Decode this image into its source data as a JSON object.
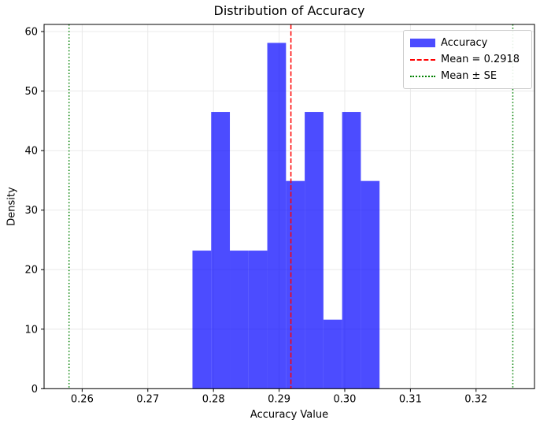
{
  "chart_data": {
    "type": "histogram",
    "title": "Distribution of Accuracy",
    "xlabel": "Accuracy Value",
    "ylabel": "Density",
    "xlim": [
      0.2542,
      0.3289
    ],
    "ylim": [
      0,
      61.2
    ],
    "xticks": [
      {
        "value": 0.26,
        "label": "0.26"
      },
      {
        "value": 0.27,
        "label": "0.27"
      },
      {
        "value": 0.28,
        "label": "0.28"
      },
      {
        "value": 0.29,
        "label": "0.29"
      },
      {
        "value": 0.3,
        "label": "0.30"
      },
      {
        "value": 0.31,
        "label": "0.31"
      },
      {
        "value": 0.32,
        "label": "0.32"
      }
    ],
    "yticks": [
      {
        "value": 0,
        "label": "0"
      },
      {
        "value": 10,
        "label": "10"
      },
      {
        "value": 20,
        "label": "20"
      },
      {
        "value": 30,
        "label": "30"
      },
      {
        "value": 40,
        "label": "40"
      },
      {
        "value": 50,
        "label": "50"
      },
      {
        "value": 60,
        "label": "60"
      }
    ],
    "grid": true,
    "bins": {
      "edges": [
        0.2768,
        0.27965,
        0.2825,
        0.28535,
        0.2882,
        0.29105,
        0.2939,
        0.29675,
        0.2996,
        0.30245,
        0.3053
      ],
      "densities": [
        23.2,
        46.5,
        23.2,
        23.2,
        58.1,
        34.9,
        46.5,
        11.6,
        46.5,
        34.9
      ],
      "counts": [
        2,
        4,
        2,
        2,
        5,
        3,
        4,
        1,
        4,
        3
      ]
    },
    "mean": 0.2918,
    "se": 0.0338,
    "se_lines": [
      0.258,
      0.3256
    ],
    "colors": {
      "bar": "rgba(0,0,255,0.7)",
      "mean_line": "#ff0000",
      "se_line": "#008000",
      "grid": "#e7e7e7",
      "spine": "#000000"
    },
    "legend": {
      "position": "upper-right",
      "items": [
        {
          "label": "Accuracy",
          "marker": "patch"
        },
        {
          "label": "Mean = 0.2918",
          "marker": "dashed"
        },
        {
          "label": "Mean ± SE",
          "marker": "dotted"
        }
      ]
    }
  }
}
